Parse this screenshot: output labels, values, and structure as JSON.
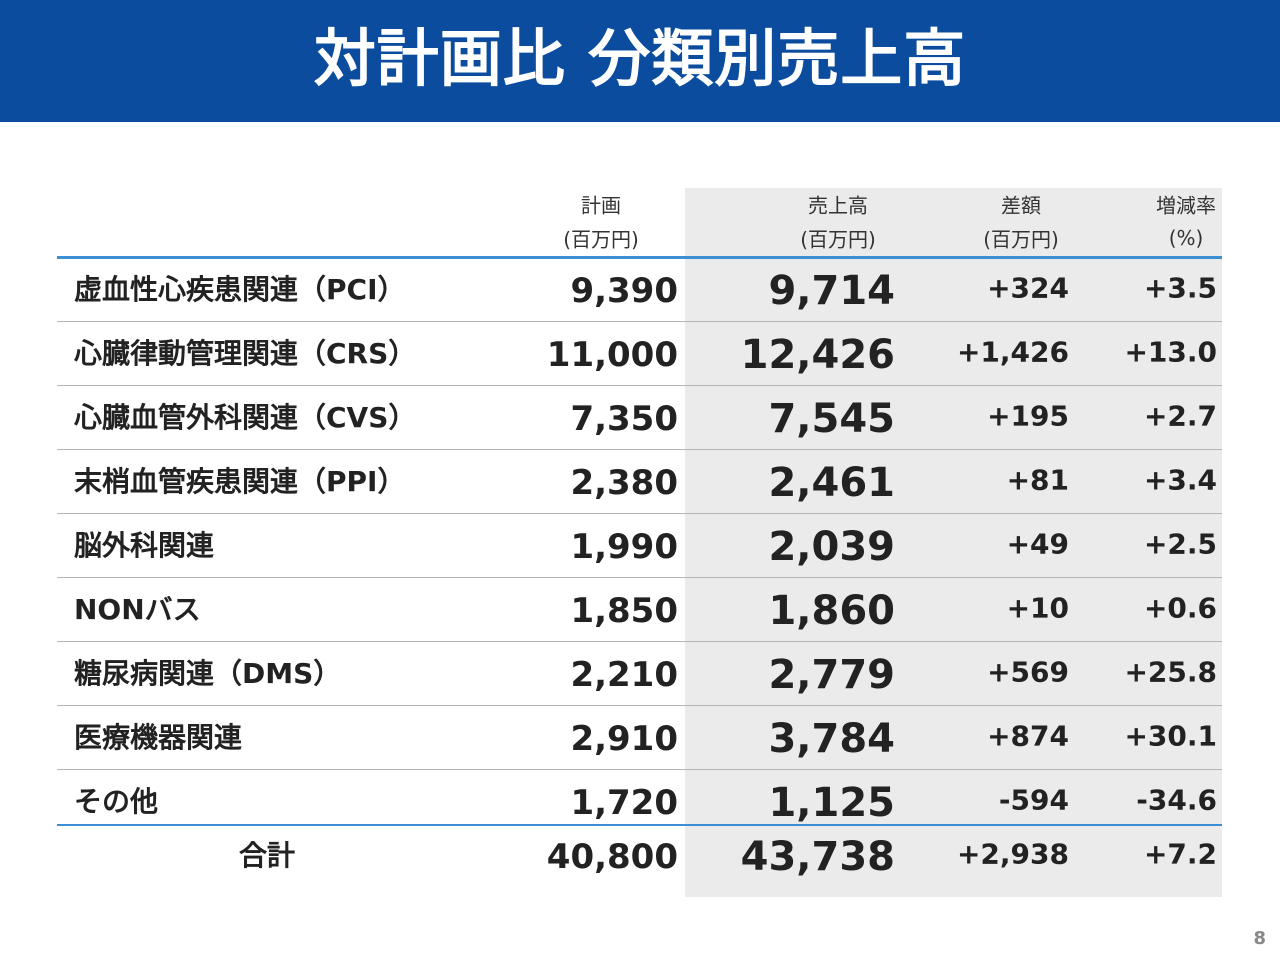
{
  "header": {
    "title": "対計画比 分類別売上高"
  },
  "table": {
    "columns": [
      [
        "計画",
        "(百万円)"
      ],
      [
        "売上高",
        "(百万円)"
      ],
      [
        "差額",
        "(百万円)"
      ],
      [
        "増減率",
        "(%)"
      ]
    ],
    "rows": [
      [
        "虚血性心疾患関連（PCI）",
        "9,390",
        "9,714",
        "+324",
        "+3.5"
      ],
      [
        "心臓律動管理関連（CRS）",
        "11,000",
        "12,426",
        "+1,426",
        "+13.0"
      ],
      [
        "心臓血管外科関連（CVS）",
        "7,350",
        "7,545",
        "+195",
        "+2.7"
      ],
      [
        "末梢血管疾患関連（PPI）",
        "2,380",
        "2,461",
        "+81",
        "+3.4"
      ],
      [
        "脳外科関連",
        "1,990",
        "2,039",
        "+49",
        "+2.5"
      ],
      [
        "NONバス",
        "1,850",
        "1,860",
        "+10",
        "+0.6"
      ],
      [
        "糖尿病関連（DMS）",
        "2,210",
        "2,779",
        "+569",
        "+25.8"
      ],
      [
        "医療機器関連",
        "2,910",
        "3,784",
        "+874",
        "+30.1"
      ],
      [
        "その他",
        "1,720",
        "1,125",
        "-594",
        "-34.6"
      ]
    ],
    "total": [
      "合計",
      "40,800",
      "43,738",
      "+2,938",
      "+7.2"
    ]
  },
  "page_number": "8"
}
